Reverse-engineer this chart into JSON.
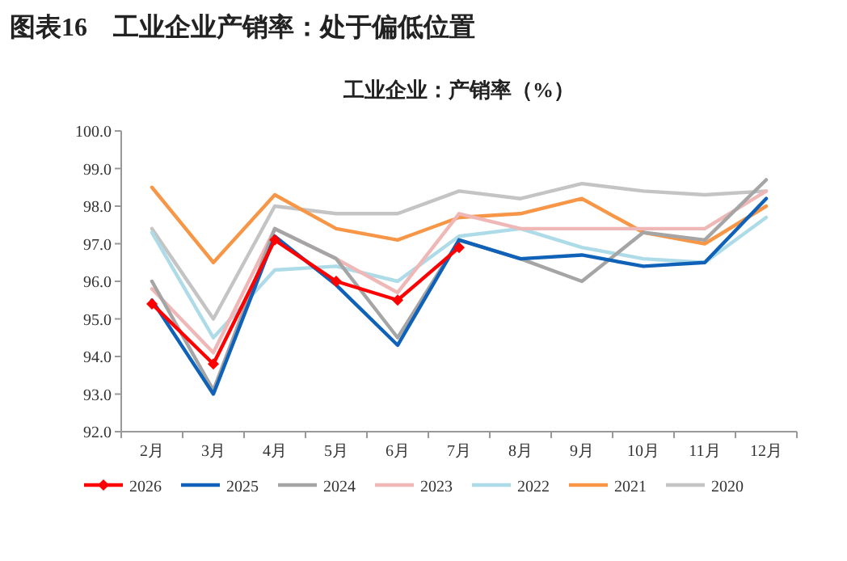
{
  "chart_data": {
    "type": "line",
    "title": "图表16　工业企业产销率：处于偏低位置",
    "subtitle": "工业企业：产销率（%）",
    "categories": [
      "2月",
      "3月",
      "4月",
      "5月",
      "6月",
      "7月",
      "8月",
      "9月",
      "10月",
      "11月",
      "12月"
    ],
    "ylim": [
      92,
      100
    ],
    "yticks": [
      {
        "value": 92,
        "label": "92.0"
      },
      {
        "value": 93,
        "label": "93.0"
      },
      {
        "value": 94,
        "label": "94.0"
      },
      {
        "value": 95,
        "label": "95.0"
      },
      {
        "value": 96,
        "label": "96.0"
      },
      {
        "value": 97,
        "label": "97.0"
      },
      {
        "value": 98,
        "label": "98.0"
      },
      {
        "value": 99,
        "label": "99.0"
      },
      {
        "value": 100,
        "label": "100.0"
      }
    ],
    "grid": false,
    "legend": "bottom",
    "series": [
      {
        "name": "2026",
        "color": "#ff0000",
        "marker": "diamond",
        "values": [
          95.4,
          93.8,
          97.1,
          96.0,
          95.5,
          96.9,
          null,
          null,
          null,
          null,
          null
        ]
      },
      {
        "name": "2025",
        "color": "#0f62b8",
        "values": [
          95.5,
          93.0,
          97.2,
          95.9,
          94.3,
          97.1,
          96.6,
          96.7,
          96.4,
          96.5,
          98.2
        ]
      },
      {
        "name": "2024",
        "color": "#a5a5a5",
        "values": [
          96.0,
          93.1,
          97.4,
          96.6,
          94.5,
          97.1,
          96.6,
          96.0,
          97.3,
          97.1,
          98.7
        ]
      },
      {
        "name": "2023",
        "color": "#f0b7b7",
        "values": [
          95.8,
          94.1,
          97.4,
          96.6,
          95.7,
          97.8,
          97.4,
          97.4,
          97.4,
          97.4,
          98.4
        ]
      },
      {
        "name": "2022",
        "color": "#addbe8",
        "values": [
          97.3,
          94.5,
          96.3,
          96.4,
          96.0,
          97.2,
          97.4,
          96.9,
          96.6,
          96.5,
          97.7
        ]
      },
      {
        "name": "2021",
        "color": "#f79646",
        "values": [
          98.5,
          96.5,
          98.3,
          97.4,
          97.1,
          97.7,
          97.8,
          98.2,
          97.3,
          97.0,
          98.0
        ]
      },
      {
        "name": "2020",
        "color": "#c4c4c4",
        "values": [
          97.4,
          95.0,
          98.0,
          97.8,
          97.8,
          98.4,
          98.2,
          98.6,
          98.4,
          98.3,
          98.4
        ]
      }
    ]
  }
}
